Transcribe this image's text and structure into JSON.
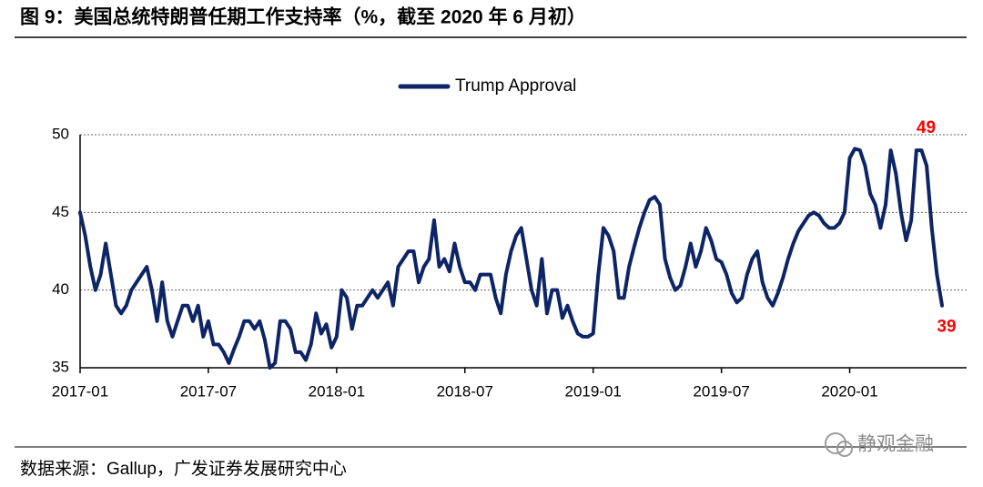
{
  "chart_data": {
    "type": "line",
    "title": "图 9：美国总统特朗普任期工作支持率（%，截至 2020 年 6 月初）",
    "source": "数据来源：Gallup，广发证券发展研究中心",
    "watermark": "静观金融",
    "x": [
      2017,
      2017.02,
      2017.04,
      2017.06,
      2017.08,
      2017.1,
      2017.12,
      2017.14,
      2017.16,
      2017.18,
      2017.2,
      2017.22,
      2017.24,
      2017.26,
      2017.28,
      2017.3,
      2017.32,
      2017.34,
      2017.36,
      2017.38,
      2017.4,
      2017.42,
      2017.44,
      2017.46,
      2017.48,
      2017.5,
      2017.52,
      2017.54,
      2017.56,
      2017.58,
      2017.6,
      2017.62,
      2017.64,
      2017.66,
      2017.68,
      2017.7,
      2017.72,
      2017.74,
      2017.76,
      2017.78,
      2017.8,
      2017.82,
      2017.84,
      2017.86,
      2017.88,
      2017.9,
      2017.92,
      2017.94,
      2017.96,
      2017.98,
      2018,
      2018.02,
      2018.04,
      2018.06,
      2018.08,
      2018.1,
      2018.12,
      2018.14,
      2018.16,
      2018.18,
      2018.2,
      2018.22,
      2018.24,
      2018.26,
      2018.28,
      2018.3,
      2018.32,
      2018.34,
      2018.36,
      2018.38,
      2018.4,
      2018.42,
      2018.44,
      2018.46,
      2018.48,
      2018.5,
      2018.52,
      2018.54,
      2018.56,
      2018.58,
      2018.6,
      2018.62,
      2018.64,
      2018.66,
      2018.68,
      2018.7,
      2018.72,
      2018.74,
      2018.76,
      2018.78,
      2018.8,
      2018.82,
      2018.84,
      2018.86,
      2018.88,
      2018.9,
      2018.92,
      2018.94,
      2018.96,
      2018.98,
      2019,
      2019.02,
      2019.04,
      2019.06,
      2019.08,
      2019.1,
      2019.12,
      2019.14,
      2019.16,
      2019.18,
      2019.2,
      2019.22,
      2019.24,
      2019.26,
      2019.28,
      2019.3,
      2019.32,
      2019.34,
      2019.36,
      2019.38,
      2019.4,
      2019.42,
      2019.44,
      2019.46,
      2019.48,
      2019.5,
      2019.52,
      2019.54,
      2019.56,
      2019.58,
      2019.6,
      2019.62,
      2019.64,
      2019.66,
      2019.68,
      2019.7,
      2019.72,
      2019.74,
      2019.76,
      2019.78,
      2019.8,
      2019.82,
      2019.84,
      2019.86,
      2019.88,
      2019.9,
      2019.92,
      2019.94,
      2019.96,
      2019.98,
      2020,
      2020.02,
      2020.04,
      2020.06,
      2020.08,
      2020.1,
      2020.12,
      2020.14,
      2020.16,
      2020.18,
      2020.2,
      2020.22,
      2020.24,
      2020.26,
      2020.28,
      2020.3,
      2020.32,
      2020.34,
      2020.36
    ],
    "series": [
      {
        "name": "Trump Approval",
        "color": "#0d2466",
        "values": [
          45,
          43.5,
          41.5,
          40,
          41,
          43,
          41,
          39,
          38.5,
          39,
          40,
          40.5,
          41,
          41.5,
          40,
          38,
          40.5,
          38,
          37,
          38,
          39,
          39,
          38,
          39,
          37,
          38,
          36.5,
          36.5,
          36,
          35.3,
          36.2,
          37,
          38,
          38,
          37.5,
          38,
          36.8,
          35,
          35.3,
          38,
          38,
          37.5,
          36,
          36,
          35.5,
          36.5,
          38.5,
          37.2,
          37.8,
          36.3,
          37,
          40,
          39.5,
          37.5,
          39,
          39,
          39.5,
          40,
          39.5,
          40,
          40.5,
          39,
          41.5,
          42,
          42.5,
          42.5,
          40.5,
          41.5,
          42,
          44.5,
          41.5,
          42,
          41.2,
          43,
          41.5,
          40.5,
          40.5,
          40,
          41,
          41,
          41,
          39.5,
          38.5,
          41,
          42.5,
          43.5,
          44,
          42,
          40,
          39,
          42,
          38.5,
          40,
          40,
          38.2,
          39,
          38,
          37.2,
          37,
          37,
          37.2,
          41,
          44,
          43.5,
          42.5,
          39.5,
          39.5,
          41.5,
          42.8,
          44,
          45,
          45.8,
          46,
          45.5,
          42,
          40.8,
          40,
          40.3,
          41.5,
          43,
          41.5,
          42.5,
          44,
          43.2,
          42,
          41.8,
          41,
          39.8,
          39.2,
          39.5,
          41,
          42,
          42.5,
          40.5,
          39.5,
          39,
          39.8,
          40.8,
          42,
          43,
          43.8,
          44.3,
          44.8,
          45,
          44.8,
          44.3,
          44,
          44,
          44.3,
          45,
          48.5,
          49.1,
          49,
          48,
          46.2,
          45.5,
          44,
          45.5,
          49,
          47.5,
          45,
          43.2,
          44.5,
          49,
          49,
          48,
          44,
          41,
          39
        ],
        "value_labels": [
          null,
          null,
          null,
          null,
          null,
          null,
          null,
          null,
          null,
          null,
          null,
          null,
          null,
          null,
          null,
          null,
          null,
          null,
          null,
          null,
          null,
          null,
          null,
          null,
          null,
          null,
          null,
          null,
          null,
          null,
          null,
          null,
          null,
          null,
          null,
          null,
          null,
          null,
          null,
          null,
          null,
          null,
          null,
          null,
          null,
          null,
          null,
          null,
          null,
          null,
          null,
          null,
          null,
          null,
          null,
          null,
          null,
          null,
          null,
          null,
          null,
          null,
          null,
          null,
          null,
          null,
          null,
          null,
          null,
          null,
          null,
          null,
          null,
          null,
          null,
          null,
          null,
          null,
          null,
          null,
          null,
          null,
          null,
          null,
          null,
          null,
          null,
          null,
          null,
          null,
          null,
          null,
          null,
          null,
          null,
          null,
          null,
          null,
          null,
          null,
          null,
          null,
          null,
          null,
          null,
          null,
          null,
          null,
          null,
          null,
          null,
          null,
          null,
          null,
          null,
          null,
          null,
          null,
          null,
          null,
          null,
          null,
          null,
          null,
          null,
          null,
          null,
          null,
          null,
          null,
          null,
          null,
          null,
          null,
          null,
          null,
          null,
          null,
          null,
          null,
          null,
          null,
          null,
          null,
          null,
          null,
          null,
          null,
          null,
          null,
          null,
          null,
          null,
          null,
          null,
          null,
          null,
          null,
          null,
          null,
          null,
          null,
          null,
          null,
          "49",
          null,
          null,
          null,
          "39"
        ],
        "label_color": "#ff0000"
      }
    ],
    "xlim": [
      2017,
      2020.36
    ],
    "xticks": [
      {
        "value": 2017,
        "label": "2017-01"
      },
      {
        "value": 2017.5,
        "label": "2017-07"
      },
      {
        "value": 2018,
        "label": "2018-01"
      },
      {
        "value": 2018.5,
        "label": "2018-07"
      },
      {
        "value": 2019,
        "label": "2019-01"
      },
      {
        "value": 2019.5,
        "label": "2019-07"
      },
      {
        "value": 2020,
        "label": "2020-01"
      }
    ],
    "ylim": [
      35,
      50
    ],
    "yticks": [
      35,
      40,
      45,
      50
    ],
    "grid": true,
    "legend": "top"
  }
}
